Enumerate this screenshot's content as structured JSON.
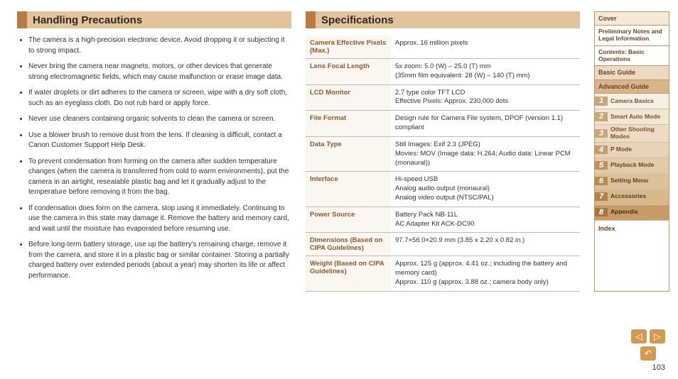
{
  "sections": {
    "precautions_title": "Handling Precautions",
    "specs_title": "Specifications"
  },
  "precautions": [
    "The camera is a high-precision electronic device. Avoid dropping it or subjecting it to strong impact.",
    "Never bring the camera near magnets, motors, or other devices that generate strong electromagnetic fields, which may cause malfunction or erase image data.",
    "If water droplets or dirt adheres to the camera or screen, wipe with a dry soft cloth, such as an eyeglass cloth. Do not rub hard or apply force.",
    "Never use cleaners containing organic solvents to clean the camera or screen.",
    "Use a blower brush to remove dust from the lens. If cleaning is difficult, contact a Canon Customer Support Help Desk.",
    "To prevent condensation from forming on the camera after sudden temperature changes (when the camera is transferred from cold to warm environments), put the camera in an airtight, resealable plastic bag and let it gradually adjust to the temperature before removing it from the bag.",
    "If condensation does form on the camera, stop using it immediately. Continuing to use the camera in this state may damage it. Remove the battery and memory card, and wait until the moisture has evaporated before resuming use.",
    "Before long-term battery storage, use up the battery's remaining charge, remove it from the camera, and store it in a plastic bag or similar container. Storing a partially charged battery over extended periods (about a year) may shorten its life or affect performance."
  ],
  "specs": [
    {
      "k": "Camera Effective Pixels (Max.)",
      "v": "Approx. 16 million pixels"
    },
    {
      "k": "Lens Focal Length",
      "v": "5x zoom: 5.0 (W) – 25.0 (T) mm\n(35mm film equivalent: 28 (W) – 140 (T) mm)"
    },
    {
      "k": "LCD Monitor",
      "v": "2.7 type color TFT LCD\nEffective Pixels: Approx. 230,000 dots"
    },
    {
      "k": "File Format",
      "v": "Design rule for Camera File system, DPOF (version 1.1) compliant"
    },
    {
      "k": "Data Type",
      "v": "Still Images: Exif 2.3 (JPEG)\nMovies: MOV (Image data: H.264; Audio data: Linear PCM (monaural))"
    },
    {
      "k": "Interface",
      "v": "Hi-speed USB\nAnalog audio output (monaural)\nAnalog video output (NTSC/PAL)"
    },
    {
      "k": "Power Source",
      "v": "Battery Pack NB-11L\nAC Adapter Kit ACK-DC90"
    },
    {
      "k": "Dimensions (Based on CIPA Guidelines)",
      "v": "97.7×56.0×20.9 mm (3.85 x 2.20 x 0.82 in.)"
    },
    {
      "k": "Weight (Based on CIPA Guidelines)",
      "v": "Approx. 125 g (approx. 4.41 oz.; including the battery and memory card)\nApprox. 110 g (approx. 3.88 oz.; camera body only)"
    }
  ],
  "nav": {
    "cover": "Cover",
    "prelim": "Preliminary Notes and Legal Information",
    "contents": "Contents: Basic Operations",
    "basic": "Basic Guide",
    "advanced": "Advanced Guide",
    "index": "Index",
    "subs": [
      {
        "n": "1",
        "l": "Camera Basics",
        "num_bg": "#caa67b",
        "row_bg": "#f6efe4",
        "txt": "#7a5328"
      },
      {
        "n": "2",
        "l": "Smart Auto Mode",
        "num_bg": "#caa67b",
        "row_bg": "#f1e5d3",
        "txt": "#7a5328"
      },
      {
        "n": "3",
        "l": "Other Shooting Modes",
        "num_bg": "#caa67b",
        "row_bg": "#ecdcc5",
        "txt": "#7a5328"
      },
      {
        "n": "4",
        "l": "P Mode",
        "num_bg": "#c49c6c",
        "row_bg": "#e7d3b7",
        "txt": "#6f4a21"
      },
      {
        "n": "5",
        "l": "Playback Mode",
        "num_bg": "#bf935e",
        "row_bg": "#e2cba9",
        "txt": "#6a451e"
      },
      {
        "n": "6",
        "l": "Setting Menu",
        "num_bg": "#b98a50",
        "row_bg": "#dcc29b",
        "txt": "#65401b"
      },
      {
        "n": "7",
        "l": "Accessories",
        "num_bg": "#b38143",
        "row_bg": "#d7b98d",
        "txt": "#5f3b18"
      },
      {
        "n": "8",
        "l": "Appendix",
        "num_bg": "#a9753a",
        "row_bg": "#c79c68",
        "txt": "#4c2e10"
      }
    ]
  },
  "footer": {
    "prev_glyph": "◁",
    "next_glyph": "▷",
    "back_glyph": "↶",
    "page_number": "103"
  },
  "colors": {
    "heading_bar": "#e3c39b",
    "heading_tab": "#b87b46",
    "spec_header_text": "#8a5a30",
    "nav_border": "#c59463",
    "btn_bg": "#d49a53"
  }
}
